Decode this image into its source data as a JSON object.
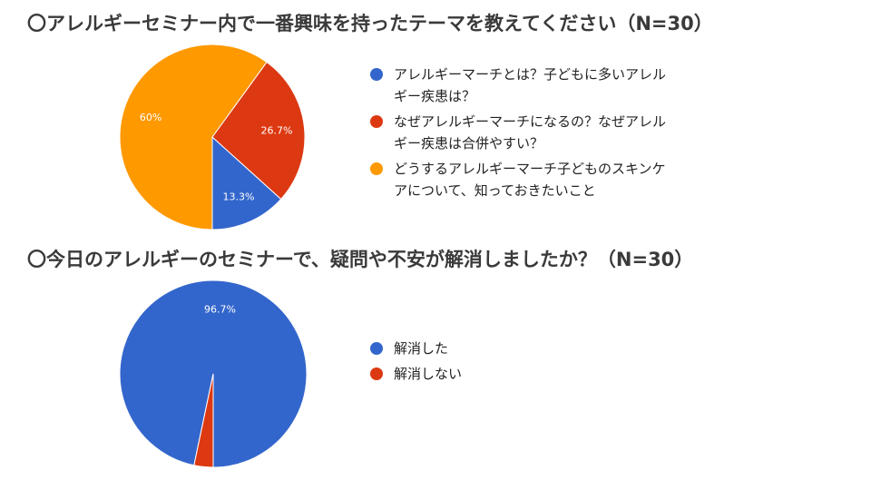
{
  "colors": {
    "blue": "#3366cc",
    "red": "#dc3912",
    "orange": "#ff9900",
    "slice_border": "#ffffff",
    "label_text": "#ffffff"
  },
  "chart_data": [
    {
      "type": "pie",
      "title": "〇アレルギーセミナー内で一番興味を持ったテーマを教えてください（N=30）",
      "legend_position": "right",
      "slices": [
        {
          "name": "アレルギーマーチとは？子どもに多いアレルギー疾患は？",
          "value": 13.3,
          "label": "13.3%",
          "color": "#3366cc"
        },
        {
          "name": "なぜアレルギーマーチになるの？なぜアレルギー疾患は合併やすい？",
          "value": 26.7,
          "label": "26.7%",
          "color": "#dc3912"
        },
        {
          "name": "どうするアレルギーマーチ子どものスキンケアについて、知っておきたいこと",
          "value": 60,
          "label": "60%",
          "color": "#ff9900"
        }
      ]
    },
    {
      "type": "pie",
      "title": "〇今日のアレルギーのセミナーで、疑問や不安が解消しましたか？（N=30）",
      "legend_position": "right",
      "slices": [
        {
          "name": "解消した",
          "value": 96.7,
          "label": "96.7%",
          "color": "#3366cc"
        },
        {
          "name": "解消しない",
          "value": 3.3,
          "label": "",
          "color": "#dc3912"
        }
      ]
    }
  ]
}
